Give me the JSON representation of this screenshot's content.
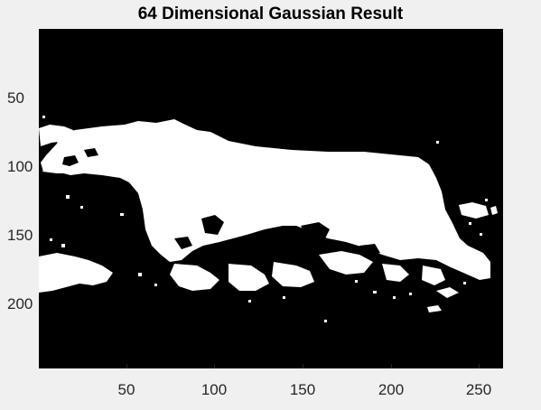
{
  "figure": {
    "title": "64 Dimensional Gaussian Result",
    "colormap": [
      "#000000",
      "#ffffff"
    ],
    "background": "#f0f0f0"
  },
  "axes": {
    "x_range": [
      1,
      263
    ],
    "y_range": [
      1,
      250
    ],
    "y_reversed": true,
    "x_ticks": [
      "50",
      "100",
      "150",
      "200",
      "250"
    ],
    "y_ticks": [
      "50",
      "100",
      "150",
      "200"
    ]
  },
  "image": {
    "type": "binary segmentation mask",
    "content": "white silhouette of a large animal (bear-like) against black background with scattered white speckles"
  }
}
